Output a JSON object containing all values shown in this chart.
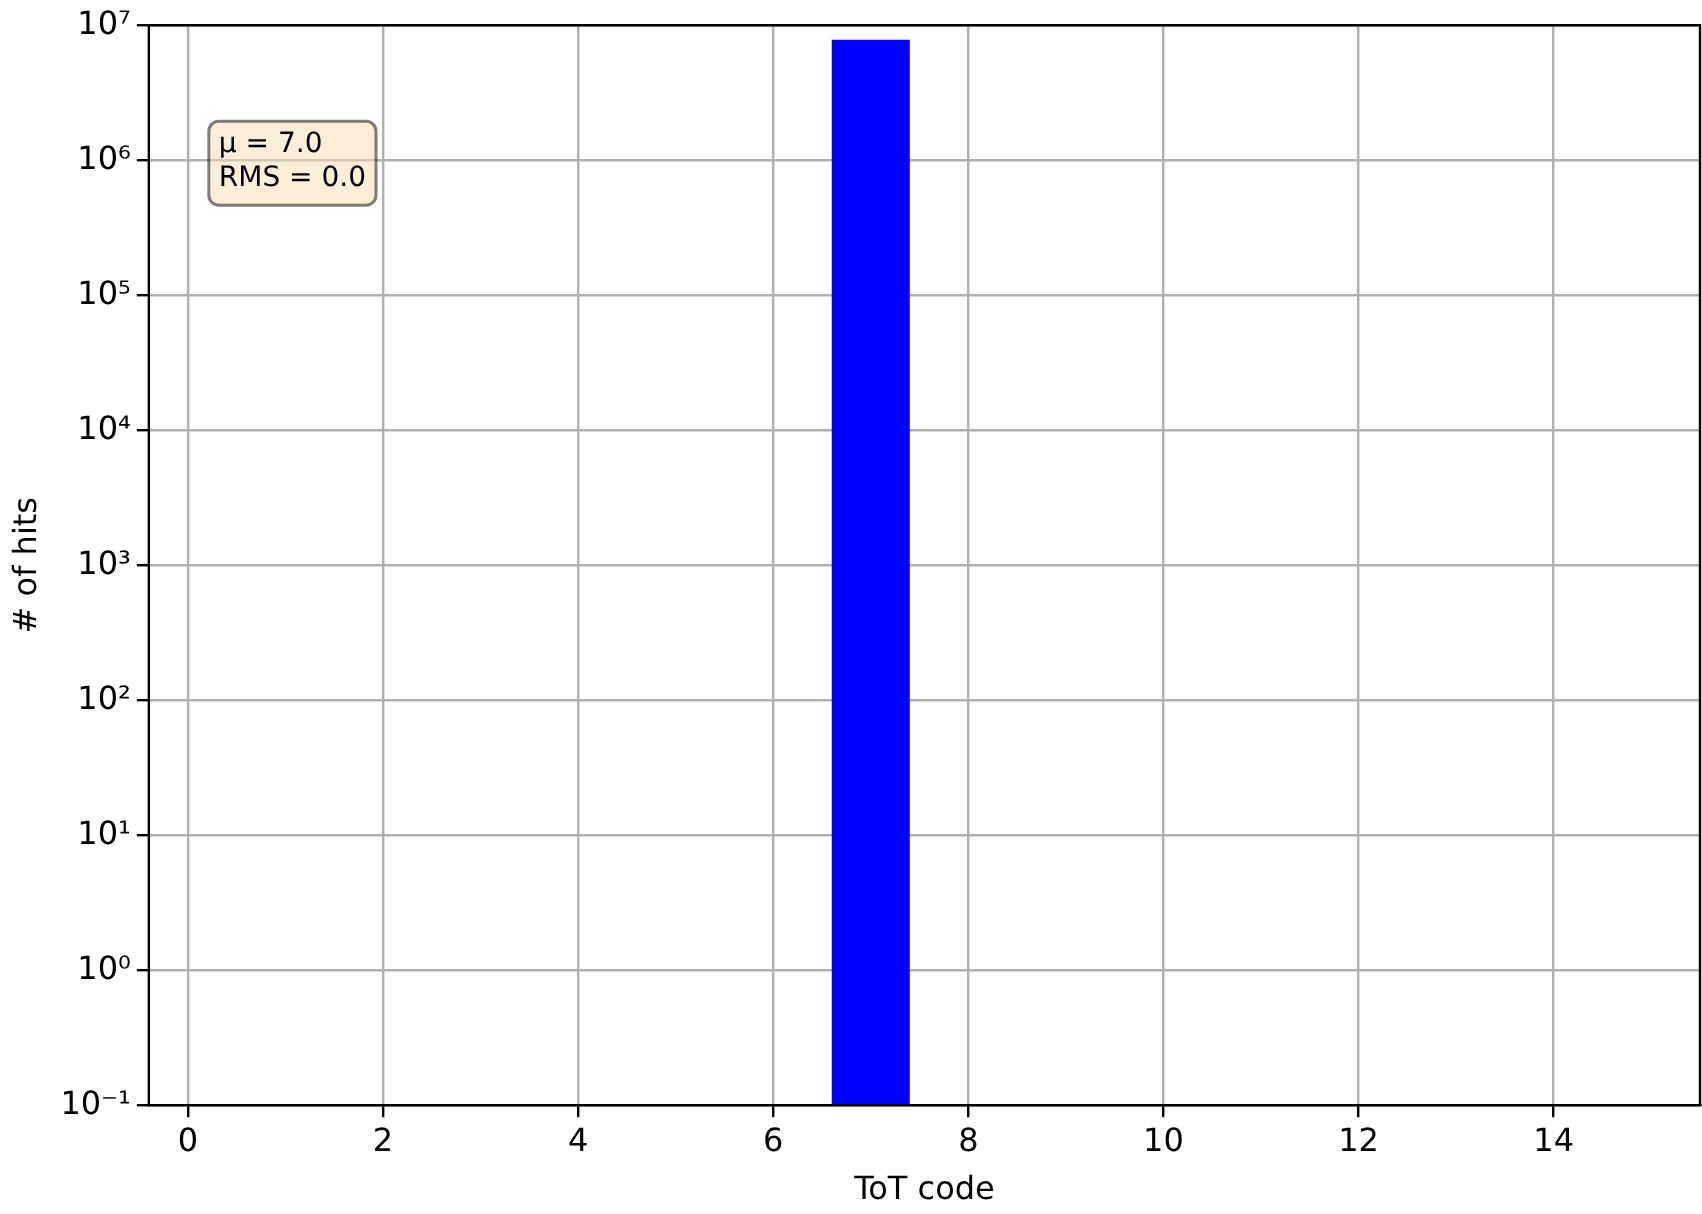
{
  "chart_data": {
    "type": "histogram",
    "xlabel": "ToT code",
    "ylabel": "# of hits",
    "bins": [
      6.6,
      7.4
    ],
    "values": [
      7800000
    ],
    "color": "#0000ff",
    "xlim": [
      -0.4,
      15.5
    ],
    "xticks": [
      0,
      2,
      4,
      6,
      8,
      10,
      12,
      14
    ],
    "ylim": [
      0.1,
      10000000
    ],
    "log": true,
    "yticks": [
      {
        "value": 0.1,
        "label": "10⁻¹"
      },
      {
        "value": 1,
        "label": "10⁰"
      },
      {
        "value": 10,
        "label": "10¹"
      },
      {
        "value": 100,
        "label": "10²"
      },
      {
        "value": 1000,
        "label": "10³"
      },
      {
        "value": 10000,
        "label": "10⁴"
      },
      {
        "value": 100000,
        "label": "10⁵"
      },
      {
        "value": 1000000,
        "label": "10⁶"
      },
      {
        "value": 10000000,
        "label": "10⁷"
      }
    ],
    "grid": true,
    "annotations": [
      "μ = 7.0",
      "RMS = 0.0"
    ]
  }
}
